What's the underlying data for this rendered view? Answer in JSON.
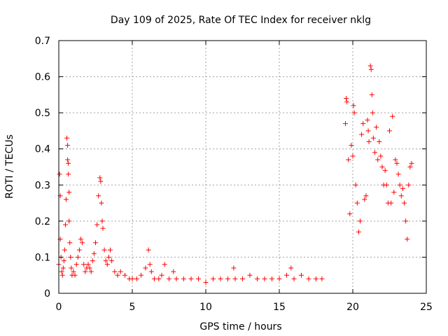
{
  "chart_data": {
    "type": "scatter",
    "title": "Day 109 of 2025, Rate Of TEC Index for receiver nklg",
    "xlabel": "GPS time / hours",
    "ylabel": "ROTI / TECUs",
    "xlim": [
      0,
      25
    ],
    "ylim": [
      0,
      0.7
    ],
    "xticks": [
      "0",
      "5",
      "10",
      "15",
      "20",
      "25"
    ],
    "yticks": [
      "0",
      "0.1",
      "0.2",
      "0.3",
      "0.4",
      "0.5",
      "0.6",
      "0.7"
    ],
    "grid": true,
    "marker": "plus",
    "color": "#ff0000",
    "series": [
      {
        "x": [
          0.0,
          0.05,
          0.1,
          0.1,
          0.15,
          0.2,
          0.25,
          0.3,
          0.35,
          0.4,
          0.45,
          0.5,
          0.55,
          0.6,
          0.6,
          0.65,
          0.65,
          0.7,
          0.7,
          0.75,
          0.8,
          0.85,
          0.9,
          1.0,
          1.1,
          1.2,
          1.3,
          1.4,
          1.5,
          1.6,
          1.7,
          1.8,
          1.9,
          2.0,
          2.1,
          2.2,
          2.3,
          2.4,
          2.5,
          2.6,
          2.7,
          2.8,
          2.85,
          2.9,
          2.95,
          3.0,
          3.1,
          3.2,
          3.3,
          3.4,
          3.5,
          3.6,
          3.8,
          4.0,
          4.2,
          4.5,
          4.8,
          5.0,
          5.3,
          5.6,
          5.9,
          6.1,
          6.2,
          6.3,
          6.5,
          6.8,
          7.0,
          7.2,
          7.5,
          7.8,
          8.0,
          8.5,
          9.0,
          9.5,
          10.0,
          10.5,
          11.0,
          11.5,
          11.9,
          12.0,
          12.5,
          13.0,
          13.5,
          14.0,
          14.5,
          15.0,
          15.5,
          15.8,
          16.0,
          16.5,
          17.0,
          17.5,
          17.9,
          19.5,
          19.55,
          19.6,
          19.7,
          19.8,
          19.9,
          20.0,
          20.05,
          20.1,
          20.2,
          20.3,
          20.4,
          20.5,
          20.6,
          20.7,
          20.8,
          20.9,
          21.0,
          21.05,
          21.1,
          21.2,
          21.25,
          21.3,
          21.35,
          21.4,
          21.5,
          21.6,
          21.7,
          21.8,
          21.9,
          22.0,
          22.1,
          22.2,
          22.3,
          22.4,
          22.5,
          22.6,
          22.7,
          22.8,
          22.9,
          23.0,
          23.1,
          23.2,
          23.3,
          23.4,
          23.5,
          23.6,
          23.7,
          23.8,
          23.9,
          24.0
        ],
        "y": [
          0.08,
          0.33,
          0.27,
          0.15,
          0.1,
          0.06,
          0.05,
          0.07,
          0.09,
          0.12,
          0.19,
          0.26,
          0.43,
          0.41,
          0.37,
          0.36,
          0.33,
          0.28,
          0.2,
          0.14,
          0.1,
          0.07,
          0.05,
          0.06,
          0.05,
          0.08,
          0.1,
          0.12,
          0.15,
          0.14,
          0.08,
          0.06,
          0.07,
          0.08,
          0.07,
          0.06,
          0.09,
          0.11,
          0.14,
          0.19,
          0.27,
          0.32,
          0.31,
          0.25,
          0.2,
          0.18,
          0.12,
          0.09,
          0.08,
          0.1,
          0.12,
          0.09,
          0.06,
          0.05,
          0.06,
          0.05,
          0.04,
          0.04,
          0.04,
          0.05,
          0.07,
          0.12,
          0.08,
          0.06,
          0.04,
          0.04,
          0.05,
          0.08,
          0.04,
          0.06,
          0.04,
          0.04,
          0.04,
          0.04,
          0.03,
          0.04,
          0.04,
          0.04,
          0.07,
          0.04,
          0.04,
          0.05,
          0.04,
          0.04,
          0.04,
          0.04,
          0.05,
          0.07,
          0.04,
          0.05,
          0.04,
          0.04,
          0.04,
          0.47,
          0.54,
          0.53,
          0.37,
          0.22,
          0.41,
          0.38,
          0.52,
          0.5,
          0.3,
          0.25,
          0.17,
          0.2,
          0.44,
          0.47,
          0.26,
          0.27,
          0.48,
          0.45,
          0.42,
          0.63,
          0.62,
          0.55,
          0.5,
          0.43,
          0.39,
          0.46,
          0.37,
          0.42,
          0.38,
          0.35,
          0.3,
          0.34,
          0.3,
          0.25,
          0.45,
          0.25,
          0.49,
          0.28,
          0.37,
          0.36,
          0.33,
          0.3,
          0.27,
          0.29,
          0.25,
          0.2,
          0.15,
          0.3,
          0.35,
          0.36
        ]
      }
    ]
  }
}
